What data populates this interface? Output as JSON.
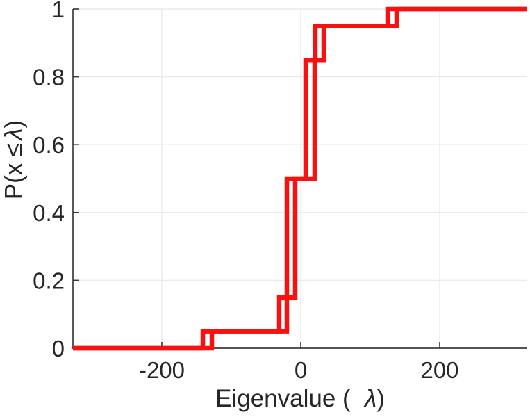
{
  "figure": {
    "background": "#ffffff",
    "curve_color": "#f91111",
    "grid_color": "#eaeaea",
    "spine_color": "#3d3d3d",
    "text_color": "#262626",
    "xlabel": {
      "prefix": "Eigenvalue (",
      "lambda": "λ",
      "suffix": ")"
    },
    "ylabel": {
      "prefix": "P(x ≤",
      "lambda": "λ",
      "suffix": ")"
    }
  },
  "chart_data": {
    "type": "line",
    "subtype": "ecdf-step",
    "title": "",
    "xlabel": "Eigenvalue ( λ)",
    "ylabel": "P(x ≤ λ)",
    "xlim": [
      -328,
      326
    ],
    "ylim": [
      0,
      1
    ],
    "grid": true,
    "legend": false,
    "x_ticks": [
      -200,
      0,
      200
    ],
    "x_tick_labels": [
      "-200",
      "0",
      "200"
    ],
    "y_ticks": [
      0,
      0.2,
      0.4,
      0.6,
      0.8,
      1
    ],
    "y_tick_labels": [
      "0",
      "0.2",
      "0.4",
      "0.6",
      "0.8",
      "1"
    ],
    "series": [
      {
        "name": "ecdf-curve-1",
        "color": "#f91111",
        "steps": [
          [
            -141,
            0.05
          ],
          [
            -20,
            0.5
          ],
          [
            7,
            0.85
          ],
          [
            21,
            0.95
          ],
          [
            125,
            1.0
          ]
        ]
      },
      {
        "name": "ecdf-curve-2",
        "color": "#f91111",
        "steps": [
          [
            -128,
            0.05
          ],
          [
            -31,
            0.15
          ],
          [
            -8,
            0.5
          ],
          [
            20,
            0.85
          ],
          [
            33,
            0.95
          ],
          [
            138,
            1.0
          ]
        ]
      }
    ]
  }
}
